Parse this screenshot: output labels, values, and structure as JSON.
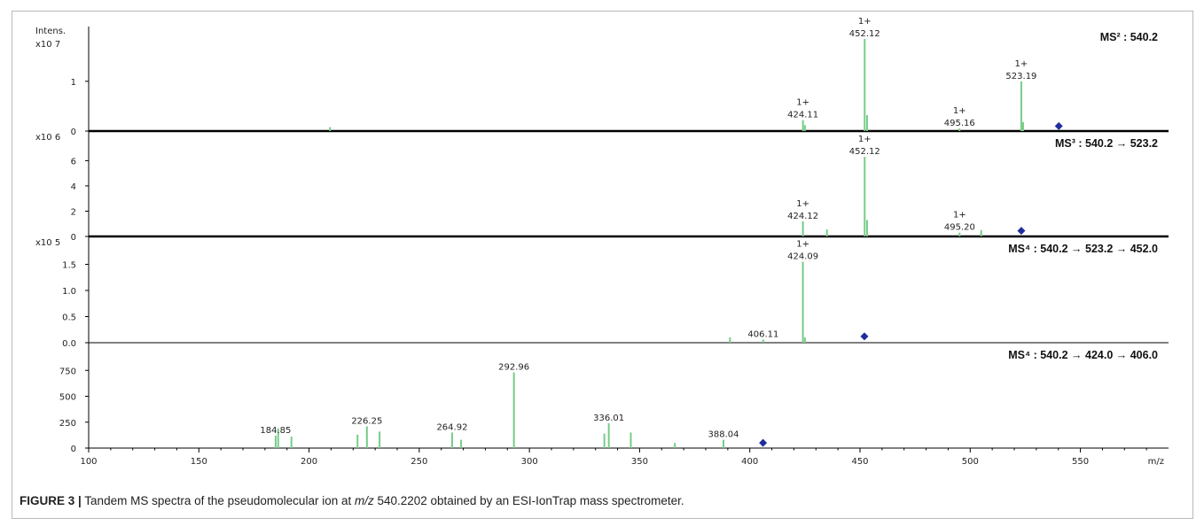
{
  "figure_id": "FIGURE 3 |",
  "caption": {
    "before": " Tandem MS spectra of the pseudomolecular ion at ",
    "italic": "m/z",
    "after": " 540.2202 obtained by an ESI-IonTrap mass spectrometer."
  },
  "colors": {
    "peak": "#77cc88",
    "precursor": "#1f2d9c",
    "axis": "#000000"
  },
  "chart_data": {
    "type": "bar",
    "xlabel": "m/z",
    "ylabel": "Intens.",
    "xlim": [
      100,
      590
    ],
    "xticks": [
      100,
      150,
      200,
      250,
      300,
      350,
      400,
      450,
      500,
      550
    ],
    "panels": [
      {
        "title": "MS² : 540.2",
        "scale_label": "x10 7",
        "ylim": [
          0,
          2.1
        ],
        "yticks": [
          {
            "v": 0,
            "t": "0"
          },
          {
            "v": 1,
            "t": "1"
          }
        ],
        "peaks": [
          [
            209.5,
            0.08
          ],
          [
            424.11,
            0.22
          ],
          [
            425.0,
            0.12
          ],
          [
            452.12,
            1.85
          ],
          [
            453.2,
            0.32
          ],
          [
            495.16,
            0.05
          ],
          [
            523.19,
            1.0
          ],
          [
            524.0,
            0.18
          ]
        ],
        "labels": [
          {
            "mz": 424.11,
            "charge": "1+",
            "text": "424.11"
          },
          {
            "mz": 452.12,
            "charge": "1+",
            "text": "452.12"
          },
          {
            "mz": 495.16,
            "charge": "1+",
            "text": "495.16"
          },
          {
            "mz": 523.19,
            "charge": "1+",
            "text": "523.19"
          }
        ],
        "precursor": {
          "mz": 540.2,
          "y": 0.1
        }
      },
      {
        "title": "MS³ : 540.2 → 523.2",
        "scale_label": "x10 6",
        "ylim": [
          0,
          8.2
        ],
        "yticks": [
          {
            "v": 0,
            "t": "0"
          },
          {
            "v": 2,
            "t": "2"
          },
          {
            "v": 4,
            "t": "4"
          },
          {
            "v": 6,
            "t": "6"
          }
        ],
        "peaks": [
          [
            424.12,
            1.2
          ],
          [
            435.0,
            0.55
          ],
          [
            452.12,
            6.3
          ],
          [
            453.2,
            1.3
          ],
          [
            495.2,
            0.3
          ],
          [
            505.0,
            0.5
          ]
        ],
        "labels": [
          {
            "mz": 424.12,
            "charge": "1+",
            "text": "424.12"
          },
          {
            "mz": 452.12,
            "charge": "1+",
            "text": "452.12"
          },
          {
            "mz": 495.2,
            "charge": "1+",
            "text": "495.20"
          }
        ],
        "precursor": {
          "mz": 523.2,
          "y": 0.45
        }
      },
      {
        "title": "MS⁴ : 540.2 → 523.2 → 452.0",
        "scale_label": "x10 5",
        "ylim": [
          0,
          2.0
        ],
        "yticks": [
          {
            "v": 0,
            "t": "0.0"
          },
          {
            "v": 0.5,
            "t": "0.5"
          },
          {
            "v": 1.0,
            "t": "1.0"
          },
          {
            "v": 1.5,
            "t": "1.5"
          }
        ],
        "peaks": [
          [
            391.0,
            0.1
          ],
          [
            406.11,
            0.06
          ],
          [
            424.09,
            1.55
          ],
          [
            425.0,
            0.1
          ]
        ],
        "labels": [
          {
            "mz": 406.11,
            "charge": "",
            "text": "406.11"
          },
          {
            "mz": 424.09,
            "charge": "1+",
            "text": "424.09"
          }
        ],
        "precursor": {
          "mz": 452.0,
          "y": 0.12
        }
      },
      {
        "title": "MS⁴ : 540.2 → 424.0 → 406.0",
        "scale_label": "",
        "ylim": [
          0,
          1000
        ],
        "yticks": [
          {
            "v": 0,
            "t": "0"
          },
          {
            "v": 250,
            "t": "250"
          },
          {
            "v": 500,
            "t": "500"
          },
          {
            "v": 750,
            "t": "750"
          }
        ],
        "peaks": [
          [
            184.85,
            120
          ],
          [
            186.0,
            190
          ],
          [
            192.0,
            110
          ],
          [
            222.0,
            130
          ],
          [
            226.25,
            210
          ],
          [
            232.0,
            160
          ],
          [
            264.92,
            150
          ],
          [
            269.0,
            80
          ],
          [
            292.96,
            730
          ],
          [
            334.0,
            140
          ],
          [
            336.01,
            240
          ],
          [
            346.0,
            150
          ],
          [
            366.0,
            50
          ],
          [
            388.04,
            80
          ]
        ],
        "labels": [
          {
            "mz": 184.85,
            "charge": "",
            "text": "184.85"
          },
          {
            "mz": 226.25,
            "charge": "",
            "text": "226.25"
          },
          {
            "mz": 264.92,
            "charge": "",
            "text": "264.92"
          },
          {
            "mz": 292.96,
            "charge": "",
            "text": "292.96"
          },
          {
            "mz": 336.01,
            "charge": "",
            "text": "336.01"
          },
          {
            "mz": 388.04,
            "charge": "",
            "text": "388.04"
          }
        ],
        "precursor": {
          "mz": 406.0,
          "y": 50
        }
      }
    ]
  }
}
